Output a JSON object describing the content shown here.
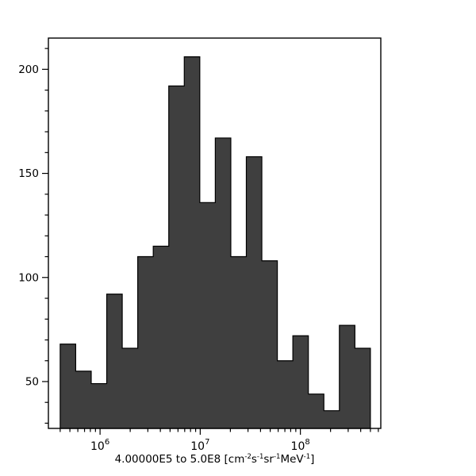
{
  "chart_data": {
    "type": "bar",
    "subtype": "histogram",
    "title": "",
    "ylabel": "",
    "xlabel": "4.00000E5 to 5.0E8 [cm⁻²s⁻¹sr⁻¹MeV⁻¹]",
    "xlabel_segments": [
      {
        "text": "4.00000E5 to 5.0E8 [cm",
        "sup": false
      },
      {
        "text": "-2",
        "sup": true
      },
      {
        "text": "s",
        "sup": false
      },
      {
        "text": "-1",
        "sup": true
      },
      {
        "text": "sr",
        "sup": false
      },
      {
        "text": "-1",
        "sup": true
      },
      {
        "text": "MeV",
        "sup": false
      },
      {
        "text": "-1",
        "sup": true
      },
      {
        "text": "]",
        "sup": false
      }
    ],
    "x_scale": "log",
    "grid": false,
    "legend": false,
    "background": "#ffffff",
    "bar_fill": "#3f3f3f",
    "bar_stroke": "#000000",
    "axis_color": "#000000",
    "text_color": "#000000",
    "data_range": [
      400000,
      500000000
    ],
    "xlim": [
      305000,
      635000000
    ],
    "ylim": [
      27.5,
      215
    ],
    "n_bins": 20,
    "bin_edges": [
      400000,
      571360,
      816160,
      1165800,
      1665200,
      2378500,
      3397500,
      4852900,
      6931800,
      9901300,
      14143000,
      20202000,
      28856000,
      41218000,
      58875000,
      84096000,
      120120000,
      171580000,
      245080000,
      350070000,
      500000000
    ],
    "counts": [
      68,
      55,
      49,
      92,
      66,
      110,
      115,
      192,
      206,
      136,
      167,
      110,
      158,
      108,
      60,
      72,
      44,
      36,
      77,
      66
    ],
    "x_major_tick_exponents": [
      6,
      7,
      8
    ],
    "x_major_tick_labels": [
      "10⁶",
      "10⁷",
      "10⁸"
    ],
    "x_minor_tick_mantissas": [
      2,
      3,
      4,
      5,
      6,
      7,
      8,
      9
    ],
    "y_major_ticks": [
      50,
      100,
      150,
      200
    ],
    "y_major_tick_labels": [
      "50",
      "100",
      "150",
      "200"
    ],
    "y_minor_tick_step": 10,
    "y_minor_tick_range": [
      30,
      210
    ]
  }
}
